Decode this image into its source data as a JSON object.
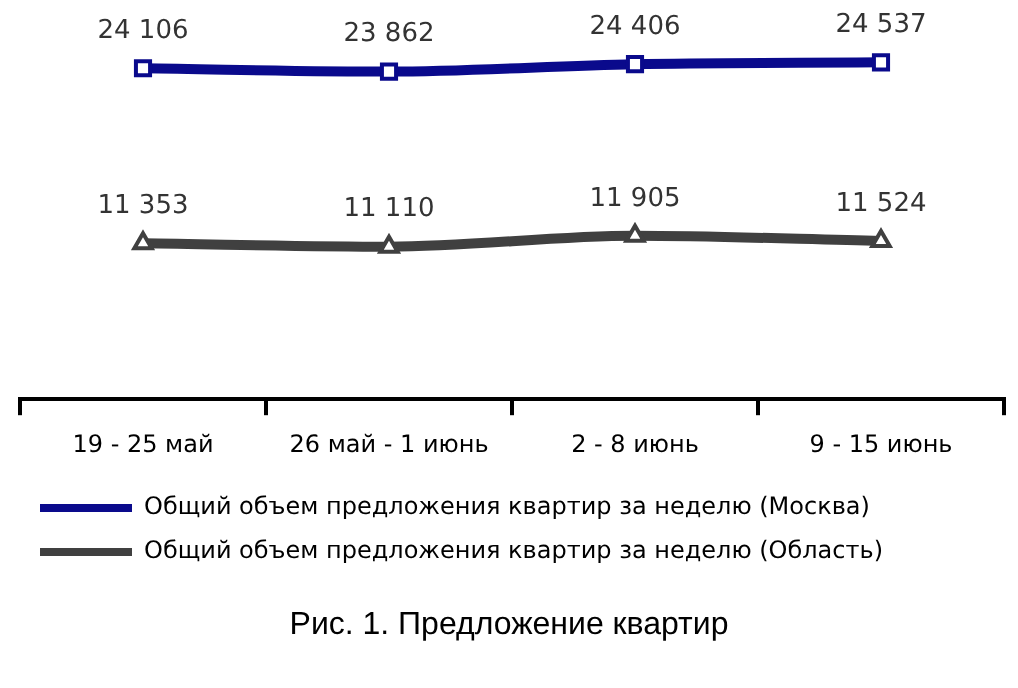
{
  "chart_data": {
    "type": "line",
    "title": "Рис. 1. Предложение квартир",
    "categories": [
      "19 - 25 май",
      "26 май - 1 июнь",
      "2 - 8 июнь",
      "9 - 15 июнь"
    ],
    "series": [
      {
        "name": "Общий объем предложения квартир за неделю (Москва)",
        "color": "#0a0a8c",
        "values": [
          24106,
          23862,
          24406,
          24537
        ],
        "marker": "square"
      },
      {
        "name": "Общий объем предложения квартир за неделю (Область)",
        "color": "#404040",
        "values": [
          11353,
          11110,
          11905,
          11524
        ],
        "marker": "triangle"
      }
    ],
    "tick_labels": "x",
    "data_labels": true,
    "legend": "bottom",
    "grid": false
  }
}
